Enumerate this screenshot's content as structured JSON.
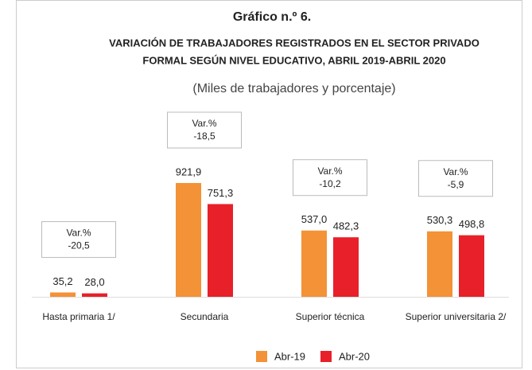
{
  "chart_data": {
    "type": "bar",
    "title": "Gráfico n.º 6.",
    "subtitle": [
      "VARIACIÓN DE TRABAJADORES REGISTRADOS EN EL SECTOR PRIVADO",
      "FORMAL SEGÚN NIVEL EDUCATIVO, ABRIL 2019-ABRIL 2020"
    ],
    "units": "(Miles de trabajadores y porcentaje)",
    "categories": [
      "Hasta primaria 1/",
      "Secundaria",
      "Superior técnica",
      "Superior universitaria 2/"
    ],
    "series": [
      {
        "name": "Abr-19",
        "color": "#f39237",
        "values": [
          35.2,
          921.9,
          537.0,
          530.3
        ],
        "value_labels": [
          "35,2",
          "921,9",
          "537,0",
          "530,3"
        ]
      },
      {
        "name": "Abr-20",
        "color": "#e8202a",
        "values": [
          28.0,
          751.3,
          482.3,
          498.8
        ],
        "value_labels": [
          "28,0",
          "751,3",
          "482,3",
          "498,8"
        ]
      }
    ],
    "annotations": [
      {
        "title": "Var.%",
        "text": "-20,5"
      },
      {
        "title": "Var.%",
        "text": "-18,5"
      },
      {
        "title": "Var.%",
        "text": "-10,2"
      },
      {
        "title": "Var.%",
        "text": "-5,9"
      }
    ]
  }
}
